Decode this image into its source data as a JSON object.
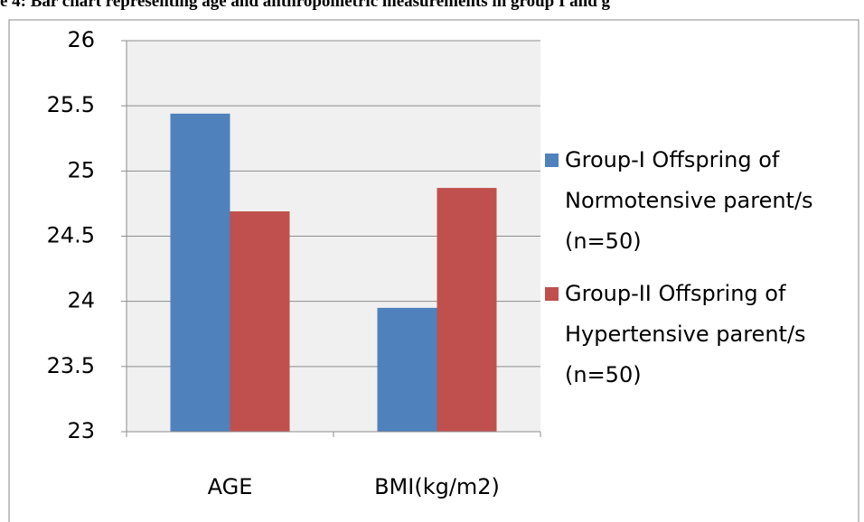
{
  "chart_data": {
    "type": "bar",
    "title": "e 4: Bar chart representing age and anthropometric measurements in group I and g",
    "categories": [
      "AGE",
      "BMI(kg/m2)"
    ],
    "series": [
      {
        "name": "Group-I Offspring of Normotensive parent/s (n=50)",
        "color": "#4f81bd",
        "values": [
          25.44,
          23.95
        ]
      },
      {
        "name": "Group-II Offspring of Hypertensive parent/s (n=50)",
        "color": "#c0504d",
        "values": [
          24.69,
          24.87
        ]
      }
    ],
    "ylim": [
      23,
      26
    ],
    "yticks": [
      23,
      23.5,
      24,
      24.5,
      25,
      25.5,
      26
    ],
    "grid": true,
    "legend": "right"
  }
}
